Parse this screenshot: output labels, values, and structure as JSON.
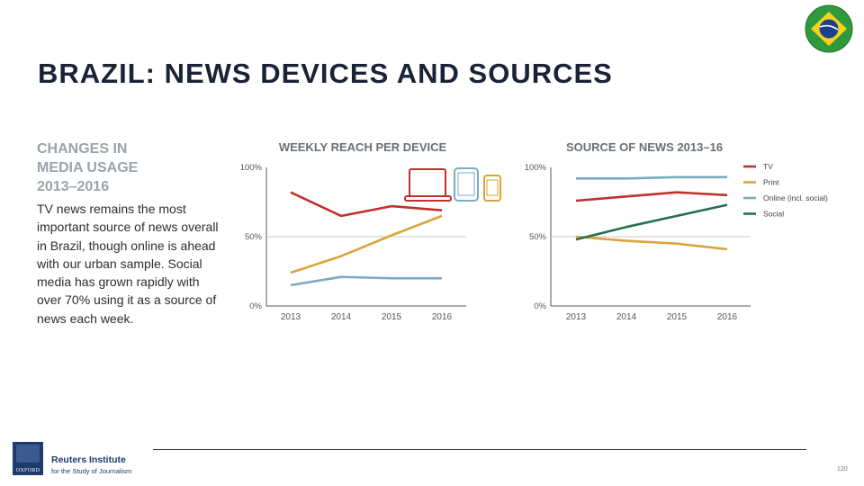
{
  "slide": {
    "title": "BRAZIL: NEWS DEVICES AND SOURCES",
    "side_heading": [
      "CHANGES IN",
      "MEDIA USAGE",
      "2013–2016"
    ],
    "side_body": "TV news remains the most important source of news overall in Brazil, though online is ahead with our urban sample. Social media has grown rapidly with over 70% using it as a source of news each week.",
    "flag_icon": "brazil-flag-icon",
    "footer": {
      "institute_name": "Reuters Institute",
      "institute_sub": "for the Study of Journalism",
      "logo_word": "OXFORD",
      "page_number": "120"
    }
  },
  "colors": {
    "title": "#1a2236",
    "heading_grey": "#9aa4ac",
    "tv_red": "#c0312e",
    "print_yellow": "#d9a53a",
    "online_blue": "#7aabbf",
    "social_green": "#24704f"
  },
  "chart_data": [
    {
      "type": "line",
      "title": "WEEKLY REACH PER DEVICE",
      "x": [
        "2013",
        "2014",
        "2015",
        "2016"
      ],
      "y_ticks": [
        "100%",
        "50%",
        "0%"
      ],
      "ylim": [
        0,
        100
      ],
      "grid": "horizontal at 50%",
      "device_icons": [
        "laptop-icon",
        "tablet-icon",
        "smartphone-icon"
      ],
      "series": [
        {
          "key": "red",
          "color": "#c0312e",
          "values": [
            82,
            65,
            72,
            69
          ]
        },
        {
          "key": "yellow",
          "color": "#d9a53a",
          "values": [
            24,
            36,
            51,
            65
          ]
        },
        {
          "key": "blue",
          "color": "#7aabbf",
          "values": [
            15,
            21,
            20,
            20
          ]
        }
      ]
    },
    {
      "type": "line",
      "title": "SOURCE OF NEWS 2013–16",
      "x": [
        "2013",
        "2014",
        "2015",
        "2016"
      ],
      "y_ticks": [
        "100%",
        "50%",
        "0%"
      ],
      "ylim": [
        0,
        100
      ],
      "grid": "horizontal at 50%",
      "legend_position": "right",
      "series": [
        {
          "name": "TV",
          "color": "#c0312e",
          "values": [
            76,
            79,
            82,
            80
          ]
        },
        {
          "name": "Print",
          "color": "#d9a53a",
          "values": [
            50,
            47,
            45,
            41
          ]
        },
        {
          "name": "Online (incl. social)",
          "color": "#7aabbf",
          "values": [
            92,
            92,
            93,
            93
          ]
        },
        {
          "name": "Social",
          "color": "#24704f",
          "values": [
            48,
            57,
            65,
            73
          ]
        }
      ]
    }
  ]
}
